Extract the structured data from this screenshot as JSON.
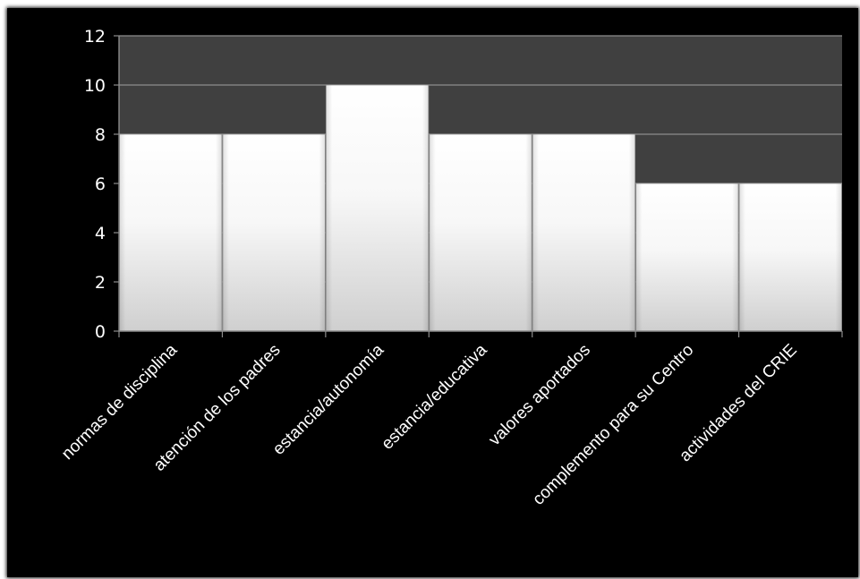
{
  "chart_data": {
    "type": "bar",
    "categories": [
      "normas de disciplina",
      "atención de los padres",
      "estancia/autonomía",
      "estancia/educativa",
      "valores aportados",
      "complemento para su Centro",
      "actividades del CRIE"
    ],
    "values": [
      8,
      8,
      10,
      8,
      8,
      6,
      6
    ],
    "title": "",
    "xlabel": "",
    "ylabel": "",
    "ylim": [
      0,
      12
    ],
    "yticks": [
      "0",
      "2",
      "4",
      "6",
      "8",
      "10",
      "12"
    ],
    "grid": true,
    "legend": "none",
    "colors": {
      "background": "#000000",
      "plot_area": "#404040",
      "gridline": "#8c8c8c",
      "bar_top": "#ffffff",
      "bar_bottom": "#d0d0d0",
      "text": "#ffffff"
    }
  }
}
